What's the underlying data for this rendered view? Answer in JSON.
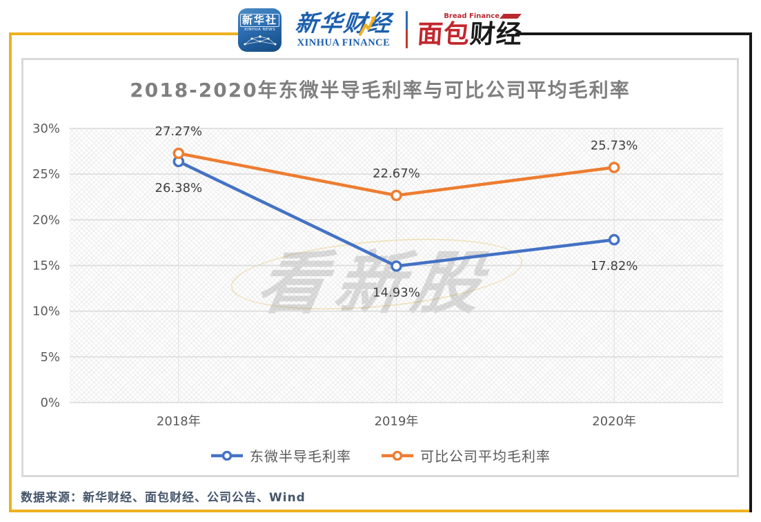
{
  "header": {
    "xinhua_news": {
      "cn": "新华社",
      "en": "XINHUA NEWS"
    },
    "xinhua_finance": {
      "cn": "新华财经",
      "en": "XINHUA FINANCE"
    },
    "bread_finance": {
      "en": "Bread Finance",
      "cn_red": "面包",
      "cn_black": "财经"
    }
  },
  "chart_data": {
    "type": "line",
    "title": "2018-2020年东微半导毛利率与可比公司平均毛利率",
    "categories": [
      "2018年",
      "2019年",
      "2020年"
    ],
    "series": [
      {
        "name": "东微半导毛利率",
        "color": "#4472c4",
        "values": [
          26.38,
          14.93,
          17.82
        ],
        "labels": [
          "26.38%",
          "14.93%",
          "17.82%"
        ],
        "label_position": "below"
      },
      {
        "name": "可比公司平均毛利率",
        "color": "#ed7d31",
        "values": [
          27.27,
          22.67,
          25.73
        ],
        "labels": [
          "27.27%",
          "22.67%",
          "25.73%"
        ],
        "label_position": "above"
      }
    ],
    "y_axis": {
      "min": 0,
      "max": 30,
      "step": 5,
      "tick_labels": [
        "0%",
        "5%",
        "10%",
        "15%",
        "20%",
        "25%",
        "30%"
      ]
    },
    "grid": true,
    "legend_position": "bottom"
  },
  "watermark": {
    "text": "看新股"
  },
  "footer": {
    "source": "数据来源：新华财经、面包财经、公司公告、Wind"
  },
  "colors": {
    "series_blue": "#4472c4",
    "series_orange": "#ed7d31",
    "frame_gold": "#eeb11e",
    "frame_black": "#171717",
    "title_gray": "#7f7f7f",
    "grid_gray": "#d9d9d9",
    "source_text": "#44546a"
  }
}
